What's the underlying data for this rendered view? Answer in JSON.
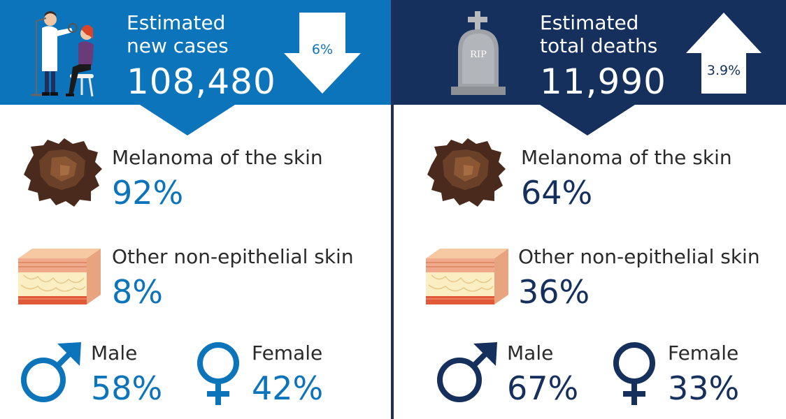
{
  "colors": {
    "new_cases_accent": "#0b74bb",
    "deaths_accent": "#15305d",
    "text_dark": "#2a2a2a"
  },
  "new_cases": {
    "label_line1": "Estimated",
    "label_line2": "new cases",
    "value": "108,480",
    "change": "6%",
    "change_direction": "down",
    "icon": "doctor-patient-icon",
    "segments": [
      {
        "label": "Melanoma of the skin",
        "value": "92%",
        "icon": "melanoma-lesion-icon"
      },
      {
        "label": "Other non-epithelial skin",
        "value": "8%",
        "icon": "skin-layers-icon"
      }
    ],
    "gender": {
      "male_label": "Male",
      "male_value": "58%",
      "female_label": "Female",
      "female_value": "42%"
    }
  },
  "deaths": {
    "label_line1": "Estimated",
    "label_line2": "total deaths",
    "value": "11,990",
    "change": "3.9%",
    "change_direction": "up",
    "icon": "tombstone-icon",
    "tombstone_text": "RIP",
    "segments": [
      {
        "label": "Melanoma of the skin",
        "value": "64%",
        "icon": "melanoma-lesion-icon"
      },
      {
        "label": "Other non-epithelial skin",
        "value": "36%",
        "icon": "skin-layers-icon"
      }
    ],
    "gender": {
      "male_label": "Male",
      "male_value": "67%",
      "female_label": "Female",
      "female_value": "33%"
    }
  }
}
